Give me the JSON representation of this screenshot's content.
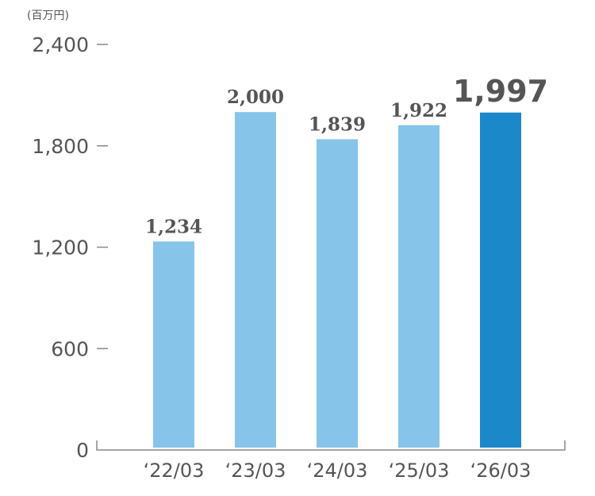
{
  "chart_data": {
    "type": "bar",
    "unit_label": "(百万円)",
    "categories": [
      "‘22/03",
      "‘23/03",
      "‘24/03",
      "‘25/03",
      "‘26/03"
    ],
    "values": [
      1234,
      2000,
      1839,
      1922,
      1997
    ],
    "value_labels": [
      "1,234",
      "2,000",
      "1,839",
      "1,922",
      "1,997"
    ],
    "yticks": [
      0,
      600,
      1200,
      1800,
      2400
    ],
    "ytick_labels": [
      "0",
      "600",
      "1,200",
      "1,800",
      "2,400"
    ],
    "ylim": [
      0,
      2400
    ],
    "highlight_index": 4,
    "colors": {
      "bar": "#87c4ea",
      "highlight_bar": "#1b88c9",
      "highlight_label": "#1b88c9",
      "text": "#555555",
      "axis": "#888888"
    },
    "grid": false,
    "title": "",
    "xlabel": "",
    "ylabel": ""
  }
}
